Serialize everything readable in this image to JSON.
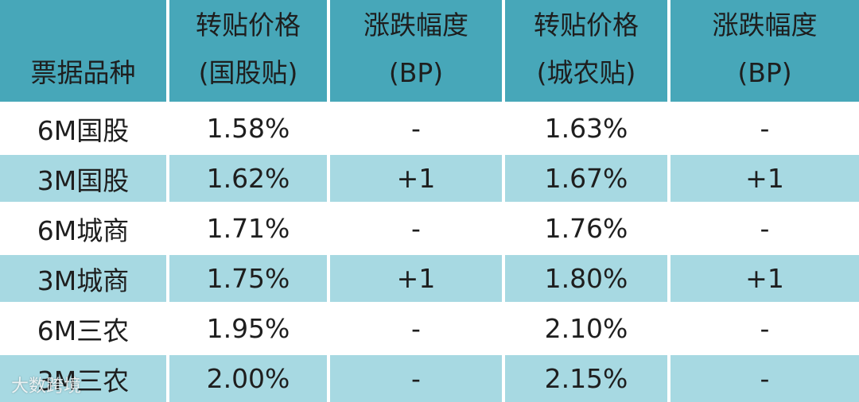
{
  "table": {
    "header": [
      [
        "票据品种"
      ],
      [
        "转贴价格",
        "(国股贴)"
      ],
      [
        "涨跌幅度",
        "(BP)"
      ],
      [
        "转贴价格",
        "(城农贴)"
      ],
      [
        "涨跌幅度",
        "(BP)"
      ]
    ],
    "rows": [
      [
        "6M国股",
        "1.58%",
        "-",
        "1.63%",
        "-"
      ],
      [
        "3M国股",
        "1.62%",
        "+1",
        "1.67%",
        "+1"
      ],
      [
        "6M城商",
        "1.71%",
        "-",
        "1.76%",
        "-"
      ],
      [
        "3M城商",
        "1.75%",
        "+1",
        "1.80%",
        "+1"
      ],
      [
        "6M三农",
        "1.95%",
        "-",
        "2.10%",
        "-"
      ],
      [
        "3M三农",
        "2.00%",
        "-",
        "2.15%",
        "-"
      ]
    ]
  },
  "watermark": "大数跨境"
}
